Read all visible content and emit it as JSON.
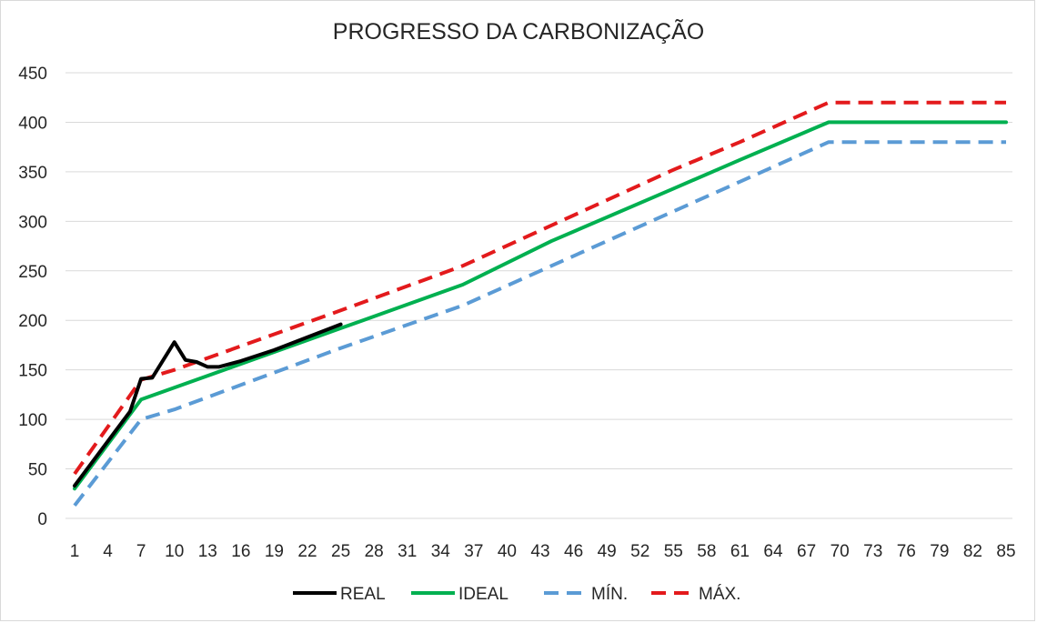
{
  "chart_data": {
    "type": "line",
    "title": "PROGRESSO DA CARBONIZAÇÃO",
    "xlabel": "",
    "ylabel": "",
    "ylim": [
      0,
      450
    ],
    "yticks": [
      0,
      50,
      100,
      150,
      200,
      250,
      300,
      350,
      400,
      450
    ],
    "xlim": [
      1,
      85
    ],
    "xticks": [
      1,
      4,
      7,
      10,
      13,
      16,
      19,
      22,
      25,
      28,
      31,
      34,
      37,
      40,
      43,
      46,
      49,
      52,
      55,
      58,
      61,
      64,
      67,
      70,
      73,
      76,
      79,
      82,
      85
    ],
    "grid": true,
    "legend_position": "bottom",
    "series": [
      {
        "name": "REAL",
        "color": "#000000",
        "dash": "solid",
        "points": [
          [
            1,
            33
          ],
          [
            4,
            78
          ],
          [
            6,
            108
          ],
          [
            7,
            141
          ],
          [
            8,
            142
          ],
          [
            10,
            178
          ],
          [
            11,
            160
          ],
          [
            12,
            158
          ],
          [
            13,
            153
          ],
          [
            14,
            153
          ],
          [
            16,
            159
          ],
          [
            19,
            170
          ],
          [
            22,
            183
          ],
          [
            25,
            196
          ]
        ]
      },
      {
        "name": "IDEAL",
        "color": "#00b050",
        "dash": "solid",
        "points": [
          [
            1,
            30
          ],
          [
            7,
            120
          ],
          [
            25,
            192
          ],
          [
            27,
            200
          ],
          [
            36,
            236
          ],
          [
            44,
            280
          ],
          [
            55,
            333
          ],
          [
            61,
            362
          ],
          [
            69,
            400
          ],
          [
            85,
            400
          ]
        ]
      },
      {
        "name": "MÍN.",
        "color": "#5b9bd5",
        "dash": "dashed",
        "points": [
          [
            1,
            13
          ],
          [
            7,
            100
          ],
          [
            10,
            110
          ],
          [
            25,
            172
          ],
          [
            36,
            215
          ],
          [
            55,
            310
          ],
          [
            61,
            340
          ],
          [
            69,
            380
          ],
          [
            85,
            380
          ]
        ]
      },
      {
        "name": "MÁX.",
        "color": "#e31a1c",
        "dash": "dashed",
        "points": [
          [
            1,
            45
          ],
          [
            7,
            140
          ],
          [
            10,
            150
          ],
          [
            25,
            210
          ],
          [
            36,
            255
          ],
          [
            55,
            352
          ],
          [
            61,
            380
          ],
          [
            69,
            420
          ],
          [
            85,
            420
          ]
        ]
      }
    ]
  }
}
